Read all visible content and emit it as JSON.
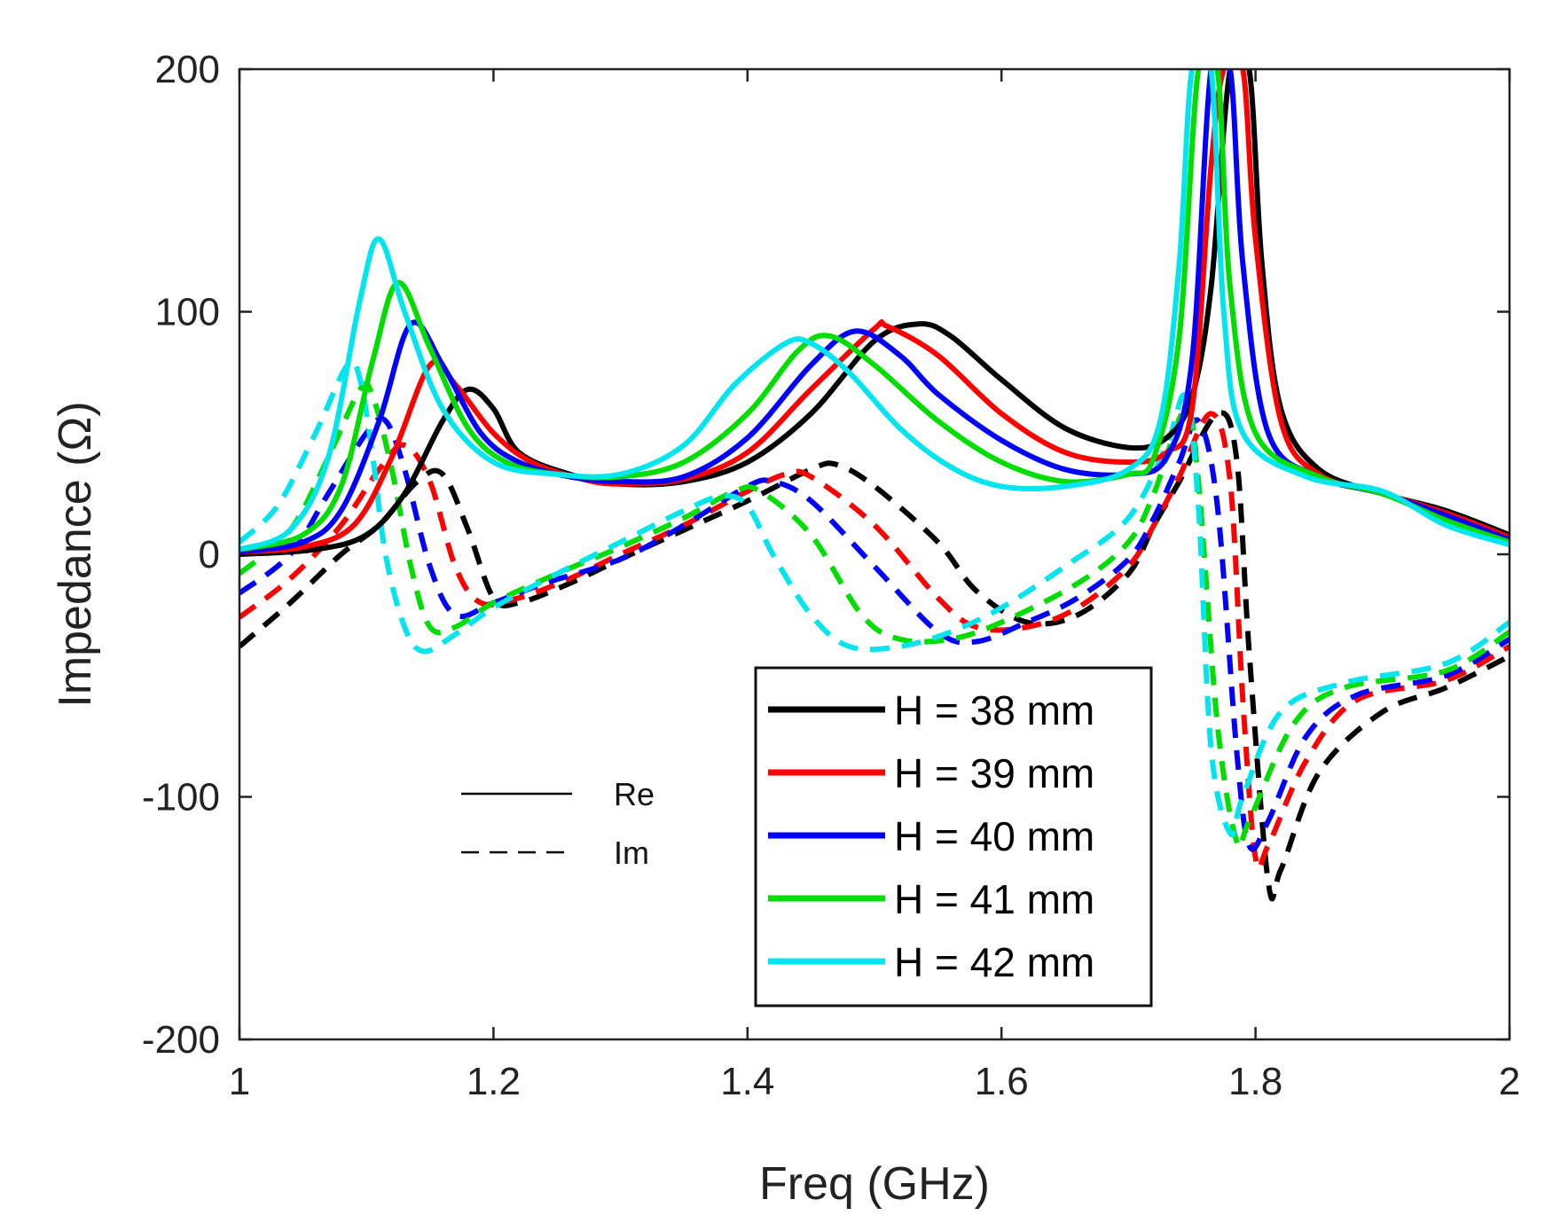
{
  "chart_data": {
    "type": "line",
    "title": "",
    "xlabel": "Freq (GHz)",
    "ylabel": "Impedance (Ω)",
    "xlim": [
      1,
      2
    ],
    "ylim": [
      -200,
      200
    ],
    "x_ticks": [
      1,
      1.2,
      1.4,
      1.6,
      1.8,
      2
    ],
    "x_tick_labels": [
      "1",
      "1.2",
      "1.4",
      "1.6",
      "1.8",
      "2"
    ],
    "y_ticks": [
      -200,
      -100,
      0,
      100,
      200
    ],
    "y_tick_labels": [
      "-200",
      "-100",
      "0",
      "100",
      "200"
    ],
    "grid": false,
    "legend_position": "bottom-center",
    "line_style_key": [
      {
        "label": "Re",
        "style": "solid"
      },
      {
        "label": "Im",
        "style": "dashed"
      }
    ],
    "series": [
      {
        "name": "H = 38 mm",
        "color": "#000000",
        "re": [
          [
            1,
            0
          ],
          [
            1.06,
            2
          ],
          [
            1.1,
            8
          ],
          [
            1.13,
            25
          ],
          [
            1.16,
            55
          ],
          [
            1.18,
            68
          ],
          [
            1.2,
            60
          ],
          [
            1.22,
            42
          ],
          [
            1.26,
            33
          ],
          [
            1.3,
            29
          ],
          [
            1.35,
            30
          ],
          [
            1.4,
            38
          ],
          [
            1.45,
            58
          ],
          [
            1.5,
            88
          ],
          [
            1.535,
            95
          ],
          [
            1.56,
            90
          ],
          [
            1.6,
            72
          ],
          [
            1.65,
            52
          ],
          [
            1.7,
            44
          ],
          [
            1.73,
            48
          ],
          [
            1.75,
            65
          ],
          [
            1.765,
            110
          ],
          [
            1.78,
            200
          ],
          [
            1.795,
            200
          ],
          [
            1.805,
            120
          ],
          [
            1.82,
            60
          ],
          [
            1.85,
            35
          ],
          [
            1.9,
            25
          ],
          [
            1.95,
            18
          ],
          [
            2,
            8
          ]
        ],
        "im": [
          [
            1,
            -38
          ],
          [
            1.04,
            -20
          ],
          [
            1.08,
            0
          ],
          [
            1.11,
            12
          ],
          [
            1.14,
            30
          ],
          [
            1.16,
            33
          ],
          [
            1.18,
            10
          ],
          [
            1.2,
            -18
          ],
          [
            1.22,
            -20
          ],
          [
            1.26,
            -12
          ],
          [
            1.3,
            -2
          ],
          [
            1.35,
            10
          ],
          [
            1.4,
            22
          ],
          [
            1.45,
            35
          ],
          [
            1.47,
            37
          ],
          [
            1.5,
            28
          ],
          [
            1.55,
            5
          ],
          [
            1.58,
            -15
          ],
          [
            1.62,
            -28
          ],
          [
            1.66,
            -25
          ],
          [
            1.7,
            -8
          ],
          [
            1.72,
            12
          ],
          [
            1.74,
            30
          ],
          [
            1.77,
            58
          ],
          [
            1.785,
            40
          ],
          [
            1.795,
            -40
          ],
          [
            1.81,
            -135
          ],
          [
            1.82,
            -130
          ],
          [
            1.85,
            -90
          ],
          [
            1.9,
            -65
          ],
          [
            1.95,
            -55
          ],
          [
            2,
            -42
          ]
        ]
      },
      {
        "name": "H = 39 mm",
        "color": "#ff0000",
        "re": [
          [
            1,
            1
          ],
          [
            1.05,
            3
          ],
          [
            1.09,
            12
          ],
          [
            1.12,
            40
          ],
          [
            1.15,
            78
          ],
          [
            1.17,
            70
          ],
          [
            1.2,
            50
          ],
          [
            1.23,
            38
          ],
          [
            1.27,
            31
          ],
          [
            1.3,
            29
          ],
          [
            1.35,
            31
          ],
          [
            1.4,
            42
          ],
          [
            1.45,
            68
          ],
          [
            1.5,
            93
          ],
          [
            1.51,
            94
          ],
          [
            1.55,
            82
          ],
          [
            1.6,
            58
          ],
          [
            1.65,
            42
          ],
          [
            1.7,
            38
          ],
          [
            1.73,
            42
          ],
          [
            1.75,
            60
          ],
          [
            1.765,
            160
          ],
          [
            1.775,
            200
          ],
          [
            1.79,
            200
          ],
          [
            1.8,
            130
          ],
          [
            1.82,
            55
          ],
          [
            1.85,
            33
          ],
          [
            1.9,
            25
          ],
          [
            1.95,
            17
          ],
          [
            2,
            7
          ]
        ],
        "im": [
          [
            1,
            -26
          ],
          [
            1.04,
            -10
          ],
          [
            1.08,
            12
          ],
          [
            1.11,
            35
          ],
          [
            1.13,
            45
          ],
          [
            1.15,
            30
          ],
          [
            1.17,
            -5
          ],
          [
            1.19,
            -20
          ],
          [
            1.22,
            -18
          ],
          [
            1.26,
            -10
          ],
          [
            1.3,
            0
          ],
          [
            1.35,
            12
          ],
          [
            1.4,
            26
          ],
          [
            1.43,
            33
          ],
          [
            1.45,
            32
          ],
          [
            1.5,
            12
          ],
          [
            1.55,
            -18
          ],
          [
            1.58,
            -30
          ],
          [
            1.62,
            -30
          ],
          [
            1.66,
            -22
          ],
          [
            1.7,
            -5
          ],
          [
            1.72,
            12
          ],
          [
            1.74,
            32
          ],
          [
            1.765,
            58
          ],
          [
            1.78,
            30
          ],
          [
            1.79,
            -60
          ],
          [
            1.8,
            -125
          ],
          [
            1.81,
            -120
          ],
          [
            1.84,
            -85
          ],
          [
            1.88,
            -60
          ],
          [
            1.95,
            -52
          ],
          [
            2,
            -38
          ]
        ]
      },
      {
        "name": "H = 40 mm",
        "color": "#0000ff",
        "re": [
          [
            1,
            1
          ],
          [
            1.05,
            5
          ],
          [
            1.08,
            18
          ],
          [
            1.11,
            55
          ],
          [
            1.135,
            95
          ],
          [
            1.16,
            78
          ],
          [
            1.19,
            50
          ],
          [
            1.22,
            38
          ],
          [
            1.26,
            32
          ],
          [
            1.3,
            30
          ],
          [
            1.35,
            32
          ],
          [
            1.4,
            48
          ],
          [
            1.45,
            78
          ],
          [
            1.485,
            92
          ],
          [
            1.52,
            82
          ],
          [
            1.55,
            66
          ],
          [
            1.6,
            47
          ],
          [
            1.65,
            35
          ],
          [
            1.7,
            33
          ],
          [
            1.73,
            40
          ],
          [
            1.75,
            80
          ],
          [
            1.765,
            200
          ],
          [
            1.78,
            200
          ],
          [
            1.79,
            120
          ],
          [
            1.81,
            50
          ],
          [
            1.85,
            32
          ],
          [
            1.9,
            25
          ],
          [
            1.95,
            16
          ],
          [
            2,
            6
          ]
        ],
        "im": [
          [
            1,
            -16
          ],
          [
            1.04,
            0
          ],
          [
            1.07,
            25
          ],
          [
            1.1,
            50
          ],
          [
            1.115,
            55
          ],
          [
            1.13,
            35
          ],
          [
            1.15,
            -5
          ],
          [
            1.17,
            -25
          ],
          [
            1.2,
            -20
          ],
          [
            1.24,
            -12
          ],
          [
            1.3,
            -2
          ],
          [
            1.35,
            12
          ],
          [
            1.4,
            28
          ],
          [
            1.42,
            30
          ],
          [
            1.45,
            22
          ],
          [
            1.5,
            -5
          ],
          [
            1.55,
            -32
          ],
          [
            1.58,
            -36
          ],
          [
            1.62,
            -28
          ],
          [
            1.66,
            -18
          ],
          [
            1.7,
            -2
          ],
          [
            1.72,
            15
          ],
          [
            1.74,
            38
          ],
          [
            1.755,
            55
          ],
          [
            1.77,
            20
          ],
          [
            1.785,
            -80
          ],
          [
            1.795,
            -120
          ],
          [
            1.81,
            -110
          ],
          [
            1.84,
            -75
          ],
          [
            1.88,
            -58
          ],
          [
            1.95,
            -50
          ],
          [
            2,
            -35
          ]
        ]
      },
      {
        "name": "H = 41 mm",
        "color": "#00dd00",
        "re": [
          [
            1,
            2
          ],
          [
            1.05,
            8
          ],
          [
            1.08,
            28
          ],
          [
            1.105,
            80
          ],
          [
            1.125,
            112
          ],
          [
            1.15,
            85
          ],
          [
            1.18,
            52
          ],
          [
            1.21,
            38
          ],
          [
            1.25,
            33
          ],
          [
            1.3,
            32
          ],
          [
            1.35,
            38
          ],
          [
            1.4,
            58
          ],
          [
            1.44,
            84
          ],
          [
            1.465,
            90
          ],
          [
            1.5,
            78
          ],
          [
            1.55,
            55
          ],
          [
            1.6,
            38
          ],
          [
            1.65,
            30
          ],
          [
            1.7,
            33
          ],
          [
            1.72,
            40
          ],
          [
            1.74,
            90
          ],
          [
            1.755,
            200
          ],
          [
            1.77,
            200
          ],
          [
            1.78,
            110
          ],
          [
            1.8,
            50
          ],
          [
            1.85,
            32
          ],
          [
            1.9,
            25
          ],
          [
            1.95,
            14
          ],
          [
            2,
            5
          ]
        ],
        "im": [
          [
            1,
            -8
          ],
          [
            1.04,
            10
          ],
          [
            1.07,
            40
          ],
          [
            1.095,
            68
          ],
          [
            1.105,
            65
          ],
          [
            1.12,
            35
          ],
          [
            1.135,
            -5
          ],
          [
            1.15,
            -30
          ],
          [
            1.17,
            -30
          ],
          [
            1.2,
            -20
          ],
          [
            1.25,
            -8
          ],
          [
            1.3,
            3
          ],
          [
            1.35,
            15
          ],
          [
            1.39,
            26
          ],
          [
            1.41,
            26
          ],
          [
            1.45,
            8
          ],
          [
            1.49,
            -25
          ],
          [
            1.52,
            -35
          ],
          [
            1.56,
            -35
          ],
          [
            1.6,
            -28
          ],
          [
            1.66,
            -12
          ],
          [
            1.7,
            5
          ],
          [
            1.72,
            25
          ],
          [
            1.745,
            60
          ],
          [
            1.755,
            30
          ],
          [
            1.77,
            -70
          ],
          [
            1.785,
            -118
          ],
          [
            1.795,
            -110
          ],
          [
            1.83,
            -70
          ],
          [
            1.87,
            -55
          ],
          [
            1.95,
            -48
          ],
          [
            2,
            -32
          ]
        ]
      },
      {
        "name": "H = 42 mm",
        "color": "#00e5ee",
        "re": [
          [
            1,
            2
          ],
          [
            1.04,
            10
          ],
          [
            1.07,
            40
          ],
          [
            1.095,
            105
          ],
          [
            1.11,
            130
          ],
          [
            1.13,
            100
          ],
          [
            1.16,
            60
          ],
          [
            1.2,
            38
          ],
          [
            1.25,
            33
          ],
          [
            1.3,
            33
          ],
          [
            1.35,
            45
          ],
          [
            1.39,
            70
          ],
          [
            1.43,
            87
          ],
          [
            1.45,
            87
          ],
          [
            1.48,
            75
          ],
          [
            1.52,
            52
          ],
          [
            1.56,
            36
          ],
          [
            1.6,
            28
          ],
          [
            1.65,
            28
          ],
          [
            1.7,
            35
          ],
          [
            1.725,
            55
          ],
          [
            1.74,
            120
          ],
          [
            1.75,
            200
          ],
          [
            1.765,
            200
          ],
          [
            1.775,
            100
          ],
          [
            1.79,
            50
          ],
          [
            1.84,
            32
          ],
          [
            1.9,
            26
          ],
          [
            1.95,
            12
          ],
          [
            2,
            4
          ]
        ],
        "im": [
          [
            1,
            5
          ],
          [
            1.03,
            20
          ],
          [
            1.06,
            50
          ],
          [
            1.085,
            78
          ],
          [
            1.095,
            72
          ],
          [
            1.105,
            40
          ],
          [
            1.115,
            0
          ],
          [
            1.13,
            -30
          ],
          [
            1.145,
            -40
          ],
          [
            1.17,
            -33
          ],
          [
            1.2,
            -22
          ],
          [
            1.25,
            -8
          ],
          [
            1.3,
            5
          ],
          [
            1.35,
            18
          ],
          [
            1.38,
            24
          ],
          [
            1.4,
            20
          ],
          [
            1.42,
            0
          ],
          [
            1.45,
            -25
          ],
          [
            1.48,
            -38
          ],
          [
            1.52,
            -38
          ],
          [
            1.56,
            -32
          ],
          [
            1.6,
            -22
          ],
          [
            1.65,
            -5
          ],
          [
            1.7,
            15
          ],
          [
            1.73,
            45
          ],
          [
            1.745,
            65
          ],
          [
            1.755,
            20
          ],
          [
            1.765,
            -80
          ],
          [
            1.78,
            -115
          ],
          [
            1.79,
            -100
          ],
          [
            1.82,
            -65
          ],
          [
            1.87,
            -53
          ],
          [
            1.95,
            -45
          ],
          [
            2,
            -28
          ]
        ]
      }
    ]
  }
}
